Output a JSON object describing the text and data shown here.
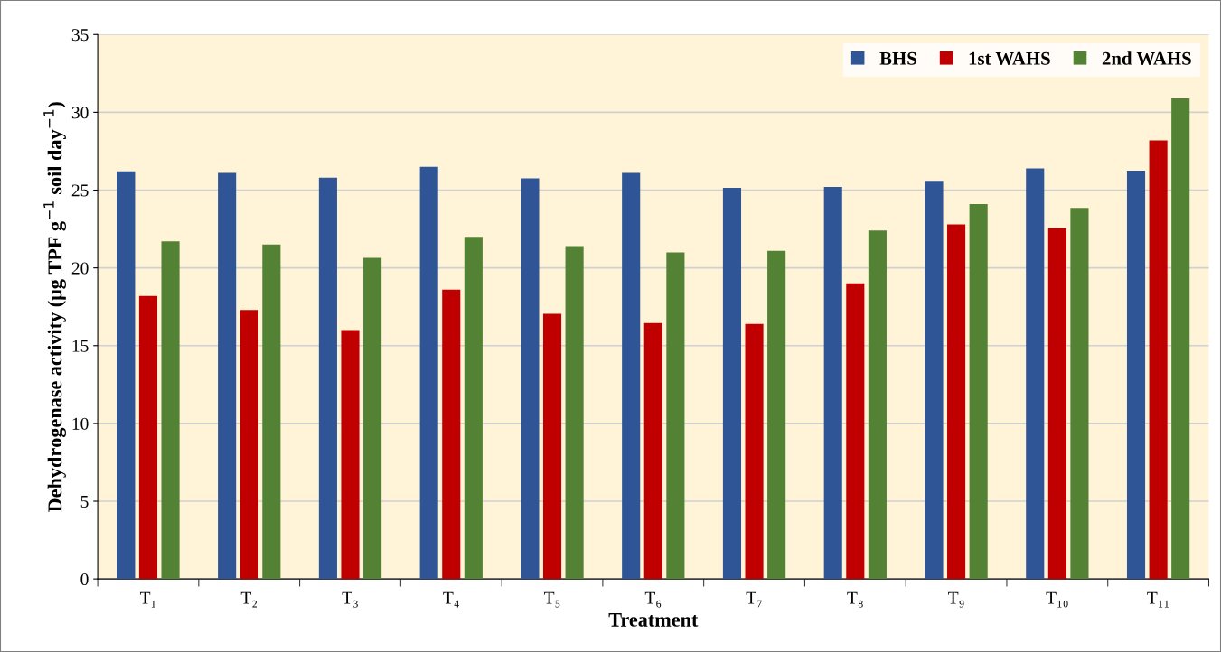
{
  "chart_data": {
    "type": "bar",
    "xlabel": "Treatment",
    "ylabel": "Dehydrogenase activity (μg TPF g$^{−1}$ soil day$^{−1}$)",
    "categories": [
      "T₁",
      "T₂",
      "T₃",
      "T₄",
      "T₅",
      "T₆",
      "T₇",
      "T₈",
      "T₉",
      "T₁₀",
      "T₁₁"
    ],
    "series": [
      {
        "name": "BHS",
        "color": "#2f5597",
        "values": [
          26.2,
          26.1,
          25.8,
          26.5,
          25.75,
          26.1,
          25.15,
          25.2,
          25.6,
          26.4,
          26.25
        ]
      },
      {
        "name": "1st WAHS",
        "color": "#c00000",
        "values": [
          18.2,
          17.3,
          16.0,
          18.6,
          17.05,
          16.45,
          16.4,
          19.0,
          22.8,
          22.55,
          28.2
        ]
      },
      {
        "name": "2nd WAHS",
        "color": "#548235",
        "values": [
          21.7,
          21.5,
          20.65,
          22.0,
          21.4,
          21.0,
          21.1,
          22.4,
          24.1,
          23.85,
          30.9
        ]
      }
    ],
    "ylim": [
      0,
      35
    ],
    "yticks": [
      0,
      5,
      10,
      15,
      20,
      25,
      30,
      35
    ],
    "grid": "y",
    "legend": "top right"
  }
}
